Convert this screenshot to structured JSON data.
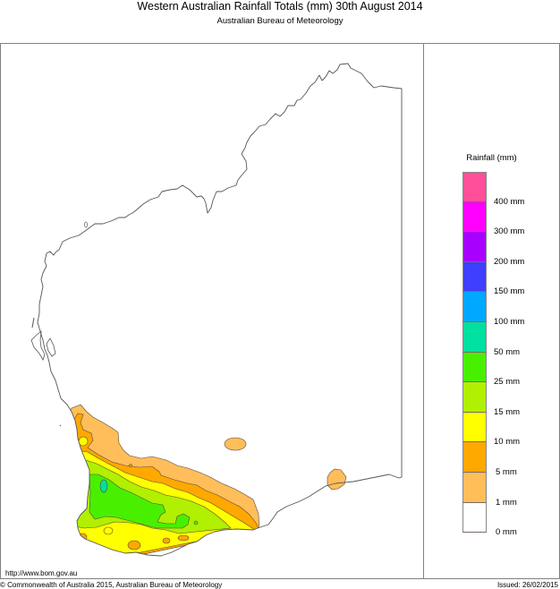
{
  "header": {
    "title": "Western Australian Rainfall Totals (mm) 30th August 2014",
    "subtitle": "Australian Bureau of Meteorology"
  },
  "legend": {
    "title": "Rainfall (mm)",
    "swatches": [
      {
        "range": "> 400 mm",
        "color": "#ff4f9a"
      },
      {
        "range": "300-400 mm",
        "color": "#ff00ff"
      },
      {
        "range": "200-300 mm",
        "color": "#a800ff"
      },
      {
        "range": "150-200 mm",
        "color": "#3f3fff"
      },
      {
        "range": "100-150 mm",
        "color": "#00a8ff"
      },
      {
        "range": "50-100 mm",
        "color": "#00e0a0"
      },
      {
        "range": "25-50 mm",
        "color": "#48f000"
      },
      {
        "range": "15-25 mm",
        "color": "#b0f000"
      },
      {
        "range": "10-15 mm",
        "color": "#ffff00"
      },
      {
        "range": "5-10 mm",
        "color": "#ffa800"
      },
      {
        "range": "1-5 mm",
        "color": "#ffbe5a"
      },
      {
        "range": "0-1 mm",
        "color": "#ffffff"
      }
    ],
    "labels": [
      "400 mm",
      "300 mm",
      "200 mm",
      "150 mm",
      "100 mm",
      "50 mm",
      "25 mm",
      "15 mm",
      "10 mm",
      "5 mm",
      "1 mm",
      "0 mm"
    ]
  },
  "map": {
    "region": "Western Australia",
    "coastline_color": "#555555",
    "rainfall_areas": [
      {
        "area": "South-west land division (west coast, Perth to Cape Leeuwin)",
        "max_band": "50-100 mm"
      },
      {
        "area": "Lower south-west interior",
        "band": "25-50 mm"
      },
      {
        "area": "South coast (Albany region)",
        "band": "10-15 mm"
      },
      {
        "area": "Central wheatbelt to Esperance",
        "band": "1-10 mm"
      },
      {
        "area": "Goldfields isolated cell",
        "band": "1-5 mm"
      },
      {
        "area": "Eucla coast isolated cell",
        "band": "1-5 mm"
      },
      {
        "area": "Remainder of state",
        "band": "0-1 mm"
      }
    ]
  },
  "footer": {
    "url": "http://www.bom.gov.au",
    "copyright": "© Commonwealth of Australia 2015, Australian Bureau of Meteorology",
    "issued": "Issued: 26/02/2015"
  }
}
